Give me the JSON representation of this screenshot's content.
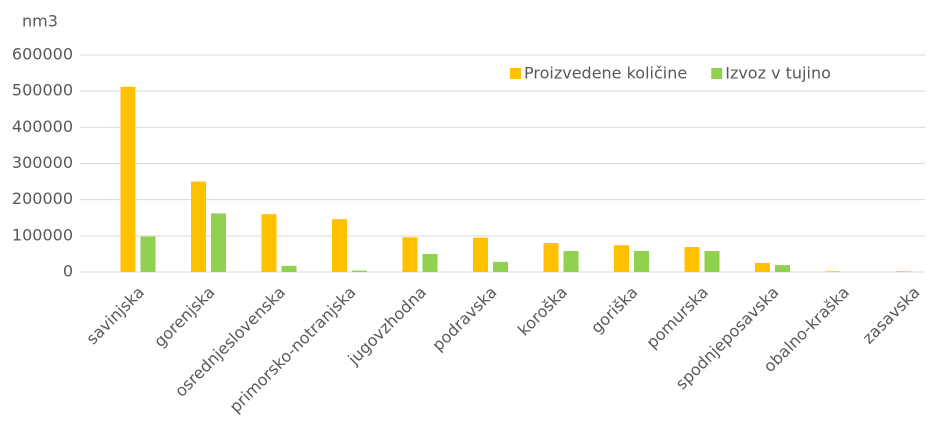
{
  "chart_data": {
    "type": "bar",
    "y_label": "nm3",
    "categories": [
      "savinjska",
      "gorenjska",
      "osrednjeslovenska",
      "primorsko-notranjska",
      "jugovzhodna",
      "podravska",
      "koroška",
      "goriška",
      "pomurska",
      "spodnjeposavska",
      "obalno-kraška",
      "zasavska"
    ],
    "series": [
      {
        "name": "Proizvedene količine",
        "color": "#FFC000",
        "values": [
          512000,
          250000,
          160000,
          146000,
          96000,
          95000,
          80000,
          74000,
          69000,
          25000,
          2000,
          2000
        ]
      },
      {
        "name": "Izvoz v tujino",
        "color": "#92D050",
        "values": [
          98000,
          162000,
          17000,
          4000,
          50000,
          28000,
          58000,
          58000,
          58000,
          19000,
          0,
          0
        ]
      }
    ],
    "ylim": [
      0,
      600000
    ],
    "yticks": [
      0,
      100000,
      200000,
      300000,
      400000,
      500000,
      600000
    ],
    "grid": true,
    "legend": "upper right"
  }
}
